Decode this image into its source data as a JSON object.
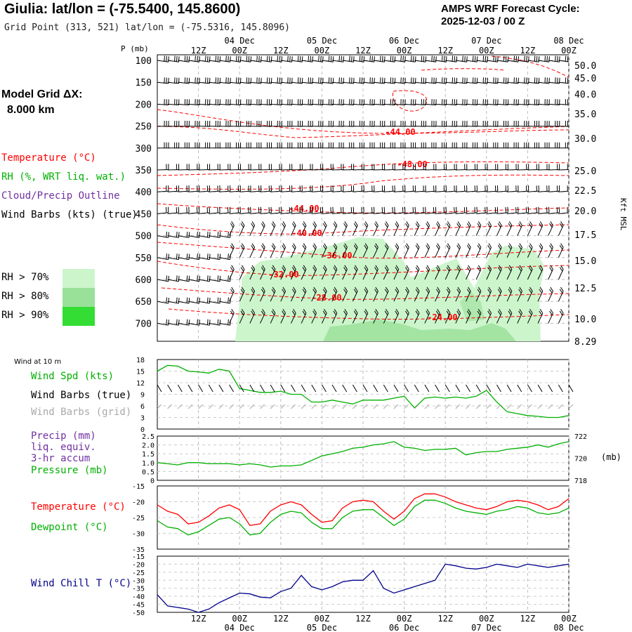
{
  "header": {
    "title": "Giulia:  lat/lon = (-75.5400, 145.8600)",
    "subtitle": "Grid Point (313, 521) lat/lon = (-75.5316, 145.8096)",
    "cycle_line1": "AMPS WRF Forecast Cycle:",
    "cycle_line2": "2025-12-03 / 00  Z"
  },
  "model_grid": {
    "label": "Model Grid ΔX:",
    "value": "8.000 km"
  },
  "legend": {
    "temperature": "Temperature (°C)",
    "rh": "RH (%, WRT liq. wat.)",
    "cloud": "Cloud/Precip Outline",
    "wind": "Wind Barbs (kts) (true)",
    "rh70": "RH > 70%",
    "rh80": "RH > 80%",
    "rh90": "RH > 90%"
  },
  "colors": {
    "temperature": "#ff0000",
    "rh": "#00b000",
    "cloud": "#7030a0",
    "rh70": "#ccf5cc",
    "rh80": "#99e099",
    "rh90": "#33dd33",
    "windchill": "#00008b",
    "grid_barbs": "#aaaaaa"
  },
  "time_axis": {
    "hour_labels": [
      "12Z",
      "00Z",
      "12Z",
      "00Z",
      "12Z",
      "00Z",
      "12Z",
      "00Z",
      "12Z",
      "00Z"
    ],
    "top_date_labels": [
      "04 Dec",
      "05 Dec",
      "06 Dec",
      "07 Dec",
      "08 Dec"
    ],
    "bottom_hour_labels": [
      "12Z",
      "00Z",
      "12Z",
      "00Z",
      "12Z",
      "00Z",
      "12Z",
      "00Z",
      "12Z",
      "00Z"
    ],
    "bottom_date_labels": [
      "04 Dec",
      "05 Dec",
      "06 Dec",
      "07 Dec",
      "08 Dec"
    ]
  },
  "sounding_panel": {
    "pressure_label": "P (mb)",
    "right_label": "Kft MSL",
    "pressure_ticks": [
      "100",
      "150",
      "200",
      "250",
      "300",
      "350",
      "400",
      "450",
      "500",
      "550",
      "600",
      "650",
      "700"
    ],
    "kft_ticks": [
      "50.0",
      "45.0",
      "40.0",
      "35.0",
      "30.0",
      "25.0",
      "22.5",
      "20.0",
      "17.5",
      "15.0",
      "12.5",
      "10.0",
      "8.29"
    ],
    "temp_contour_labels": [
      "-44.00",
      "-48.00",
      "-44.00",
      "-40.00",
      "-36.00",
      "-32.00",
      "-28.00",
      "-24.00"
    ]
  },
  "wind_panel": {
    "header": "Wind at 10 m",
    "label_spd": "Wind Spd (kts)",
    "label_barbs_true": "Wind Barbs (true)",
    "label_barbs_grid": "Wind Barbs (grid)",
    "y_ticks": [
      "18",
      "15",
      "12",
      "9",
      "6",
      "3",
      "0"
    ]
  },
  "precip_panel": {
    "label1": "Precip (mm)",
    "label2": "liq. equiv.",
    "label3": "3-hr accum",
    "label4": "Pressure (mb)",
    "left_ticks": [
      "2.5",
      "2.0",
      "1.5",
      "1.0",
      "0.5",
      "0"
    ],
    "right_ticks": [
      "722",
      "720",
      "718"
    ],
    "right_unit": "(mb)"
  },
  "temp_panel": {
    "label_temp": "Temperature (°C)",
    "label_dew": "Dewpoint (°C)",
    "y_ticks": [
      "-15",
      "-20",
      "-25",
      "-30",
      "-35"
    ]
  },
  "chill_panel": {
    "label": "Wind Chill T (°C)",
    "y_ticks": [
      "-15",
      "-20",
      "-25",
      "-30",
      "-35",
      "-40",
      "-45",
      "-50"
    ]
  },
  "chart_data": {
    "type": "line",
    "x_hours": [
      0,
      3,
      6,
      9,
      12,
      15,
      18,
      21,
      24,
      27,
      30,
      33,
      36,
      39,
      42,
      45,
      48,
      51,
      54,
      57,
      60,
      63,
      66,
      69,
      72,
      75,
      78,
      81,
      84,
      87,
      90,
      93,
      96,
      99,
      102,
      105,
      108,
      111,
      114,
      117,
      120
    ],
    "series": [
      {
        "name": "Wind Spd (kts)",
        "values": [
          15,
          16.5,
          16.3,
          15,
          14.8,
          14.5,
          15.5,
          15,
          10.5,
          10,
          9.5,
          9.5,
          9.8,
          9,
          9,
          7,
          7,
          7.5,
          7,
          6.5,
          7.5,
          7.5,
          7.5,
          8,
          8.5,
          5.5,
          8,
          8.3,
          8,
          8.3,
          8,
          8.5,
          10,
          7,
          4.5,
          4,
          3.5,
          3.3,
          3,
          3,
          3.5
        ]
      },
      {
        "name": "Pressure (mb)",
        "values": [
          719.6,
          719.5,
          719.4,
          719.6,
          719.6,
          719.5,
          719.5,
          719.5,
          719.4,
          719.5,
          719.4,
          719.2,
          719.3,
          719.3,
          719.4,
          719.8,
          720.2,
          720.4,
          720.6,
          720.9,
          721,
          721.2,
          721.3,
          721.5,
          721,
          720.9,
          720.7,
          720.8,
          720.8,
          720.9,
          720.3,
          720.5,
          720.6,
          720.6,
          720.8,
          720.9,
          721,
          721.2,
          721,
          721.3,
          721.5
        ]
      },
      {
        "name": "Temperature (°C)",
        "values": [
          -21,
          -23,
          -24,
          -27,
          -26.5,
          -24.5,
          -22,
          -21,
          -22.5,
          -27.5,
          -27,
          -23,
          -21,
          -20,
          -21,
          -24,
          -26.5,
          -26,
          -22,
          -20,
          -19.5,
          -20,
          -23,
          -25.5,
          -23,
          -19,
          -17.5,
          -17.5,
          -18.5,
          -20,
          -21,
          -22,
          -22.5,
          -21.5,
          -20,
          -19.5,
          -20,
          -21,
          -22.5,
          -21.5,
          -19
        ]
      },
      {
        "name": "Dewpoint (°C)",
        "values": [
          -26,
          -28,
          -28.5,
          -30.5,
          -29.5,
          -27.5,
          -25.5,
          -25,
          -27,
          -30.5,
          -30,
          -26.5,
          -24,
          -23,
          -23.5,
          -26.5,
          -28.5,
          -28.5,
          -25,
          -23,
          -22.5,
          -22.5,
          -25,
          -27.5,
          -25.5,
          -21.5,
          -19.5,
          -19.5,
          -20.5,
          -22,
          -23,
          -23.5,
          -24,
          -23,
          -22.5,
          -21.5,
          -22,
          -23.5,
          -24,
          -23.5,
          -22
        ]
      },
      {
        "name": "Wind Chill T (°C)",
        "values": [
          -39,
          -46,
          -47,
          -48,
          -50,
          -48,
          -44,
          -41,
          -38,
          -38.5,
          -40.5,
          -41,
          -37,
          -35,
          -27,
          -34,
          -36,
          -34,
          -31,
          -30,
          -30,
          -24,
          -35,
          -38,
          -36,
          -34,
          -32,
          -30,
          -20,
          -21,
          -22.5,
          -23,
          -22,
          -20,
          -21,
          -22,
          -20,
          -21,
          -22,
          -21,
          -20
        ]
      }
    ],
    "ylabels": [
      "Wind Spd (kts)",
      "Precip (mm) / Pressure (mb)",
      "Temperature (°C)",
      "Wind Chill T (°C)"
    ],
    "xlabel": "",
    "ylim_wind": [
      0,
      18
    ],
    "ylim_pressure": [
      718,
      722
    ],
    "ylim_temp": [
      -35,
      -15
    ],
    "ylim_chill": [
      -50,
      -15
    ],
    "grid": true
  }
}
